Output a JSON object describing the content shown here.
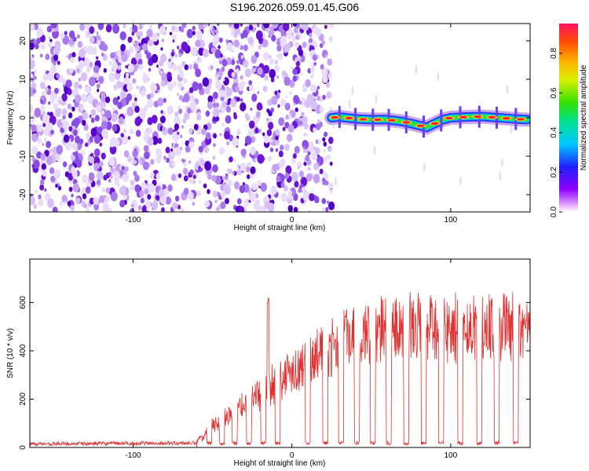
{
  "title": "S196.2026.059.01.45.G06",
  "colors": {
    "snr_line": "#e03030",
    "blob_low": "#d7bff7",
    "blob_high": "#6a14d6",
    "frame": "#000000"
  },
  "chart_data": [
    {
      "type": "heatmap",
      "title": "S196.2026.059.01.45.G06",
      "xlabel": "Height of straight line (km)",
      "ylabel": "Frequency (Hz)",
      "xlim": [
        -165,
        150
      ],
      "ylim": [
        -24.5,
        24.5
      ],
      "x_ticks": [
        -100,
        0,
        100
      ],
      "y_ticks": [
        -20,
        -10,
        0,
        10,
        20
      ],
      "x_tick_labels": [
        "-100",
        "0",
        "100"
      ],
      "y_tick_labels": [
        "-20",
        "-10",
        "0",
        "10",
        "20"
      ],
      "noise_region_x": [
        -165,
        25
      ],
      "signal_region_x": [
        25,
        150
      ],
      "signal_track": {
        "x": [
          25,
          30,
          40,
          50,
          60,
          70,
          75,
          80,
          85,
          90,
          95,
          100,
          110,
          120,
          130,
          140,
          148
        ],
        "freq_hz": [
          0.0,
          0.2,
          -0.3,
          -0.5,
          -0.5,
          -1.0,
          -1.5,
          -2.0,
          -2.5,
          -1.5,
          -0.5,
          0.0,
          0.2,
          0.3,
          0.0,
          -0.3,
          -0.5
        ]
      },
      "colorbar": {
        "label": "Normalized spectral amplitude",
        "range": [
          0.0,
          0.95
        ],
        "ticks": [
          0.0,
          0.2,
          0.4,
          0.6,
          0.8
        ],
        "tick_labels": [
          "0.0",
          "0.2",
          "0.4",
          "0.6",
          "0.8"
        ]
      }
    },
    {
      "type": "line",
      "xlabel": "Height of straight line (km)",
      "ylabel": "SNR (10 * v/v)",
      "xlim": [
        -165,
        150
      ],
      "ylim": [
        0,
        780
      ],
      "x_ticks": [
        -100,
        0,
        100
      ],
      "y_ticks": [
        0,
        200,
        400,
        600
      ],
      "x_tick_labels": [
        "-100",
        "0",
        "100"
      ],
      "y_tick_labels": [
        "0",
        "200",
        "400",
        "600"
      ],
      "series": [
        {
          "name": "SNR",
          "envelope_x": [
            -165,
            -60,
            -55,
            -45,
            -35,
            -25,
            -15,
            -5,
            5,
            15,
            25,
            35,
            45,
            60,
            80,
            100,
            120,
            140,
            150
          ],
          "envelope_y": [
            15,
            18,
            80,
            140,
            220,
            260,
            320,
            380,
            440,
            500,
            540,
            580,
            600,
            630,
            640,
            630,
            650,
            640,
            630
          ],
          "spike_x": [
            -15
          ],
          "spike_y": [
            630
          ],
          "dropout_x": [
            -52,
            -44,
            -36,
            -27,
            -18,
            -9,
            10,
            21,
            31,
            41,
            51,
            61,
            72,
            83,
            94,
            106,
            118,
            129,
            141
          ]
        }
      ]
    }
  ]
}
